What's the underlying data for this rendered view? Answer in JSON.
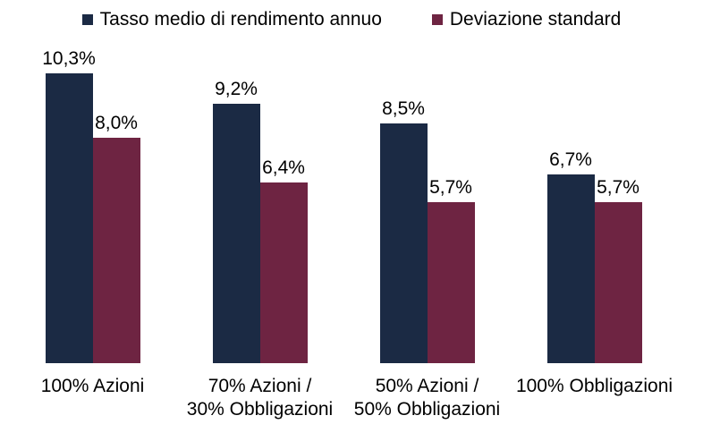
{
  "chart_data": {
    "type": "bar",
    "title": "",
    "xlabel": "",
    "ylabel": "",
    "grid": false,
    "legend_position": "top",
    "value_labels_shown": true,
    "value_label_format": "italian-decimal-percent",
    "ylim": [
      0,
      11
    ],
    "categories": [
      "100% Azioni",
      "70% Azioni /\n30% Obbligazioni",
      "50% Azioni /\n50% Obbligazioni",
      "100% Obbligazioni"
    ],
    "series": [
      {
        "name": "Tasso medio di rendimento annuo",
        "color": "#1b2a44",
        "values": [
          10.3,
          9.2,
          8.5,
          6.7
        ],
        "value_labels": [
          "10,3%",
          "9,2%",
          "8,5%",
          "6,7%"
        ]
      },
      {
        "name": "Deviazione standard",
        "color": "#6e2442",
        "values": [
          8.0,
          6.4,
          5.7,
          5.7
        ],
        "value_labels": [
          "8,0%",
          "6,4%",
          "5,7%",
          "5,7%"
        ]
      }
    ]
  },
  "legend": {
    "items": [
      {
        "label": "Tasso medio di rendimento annuo",
        "color": "#1b2a44"
      },
      {
        "label": "Deviazione standard",
        "color": "#6e2442"
      }
    ]
  }
}
